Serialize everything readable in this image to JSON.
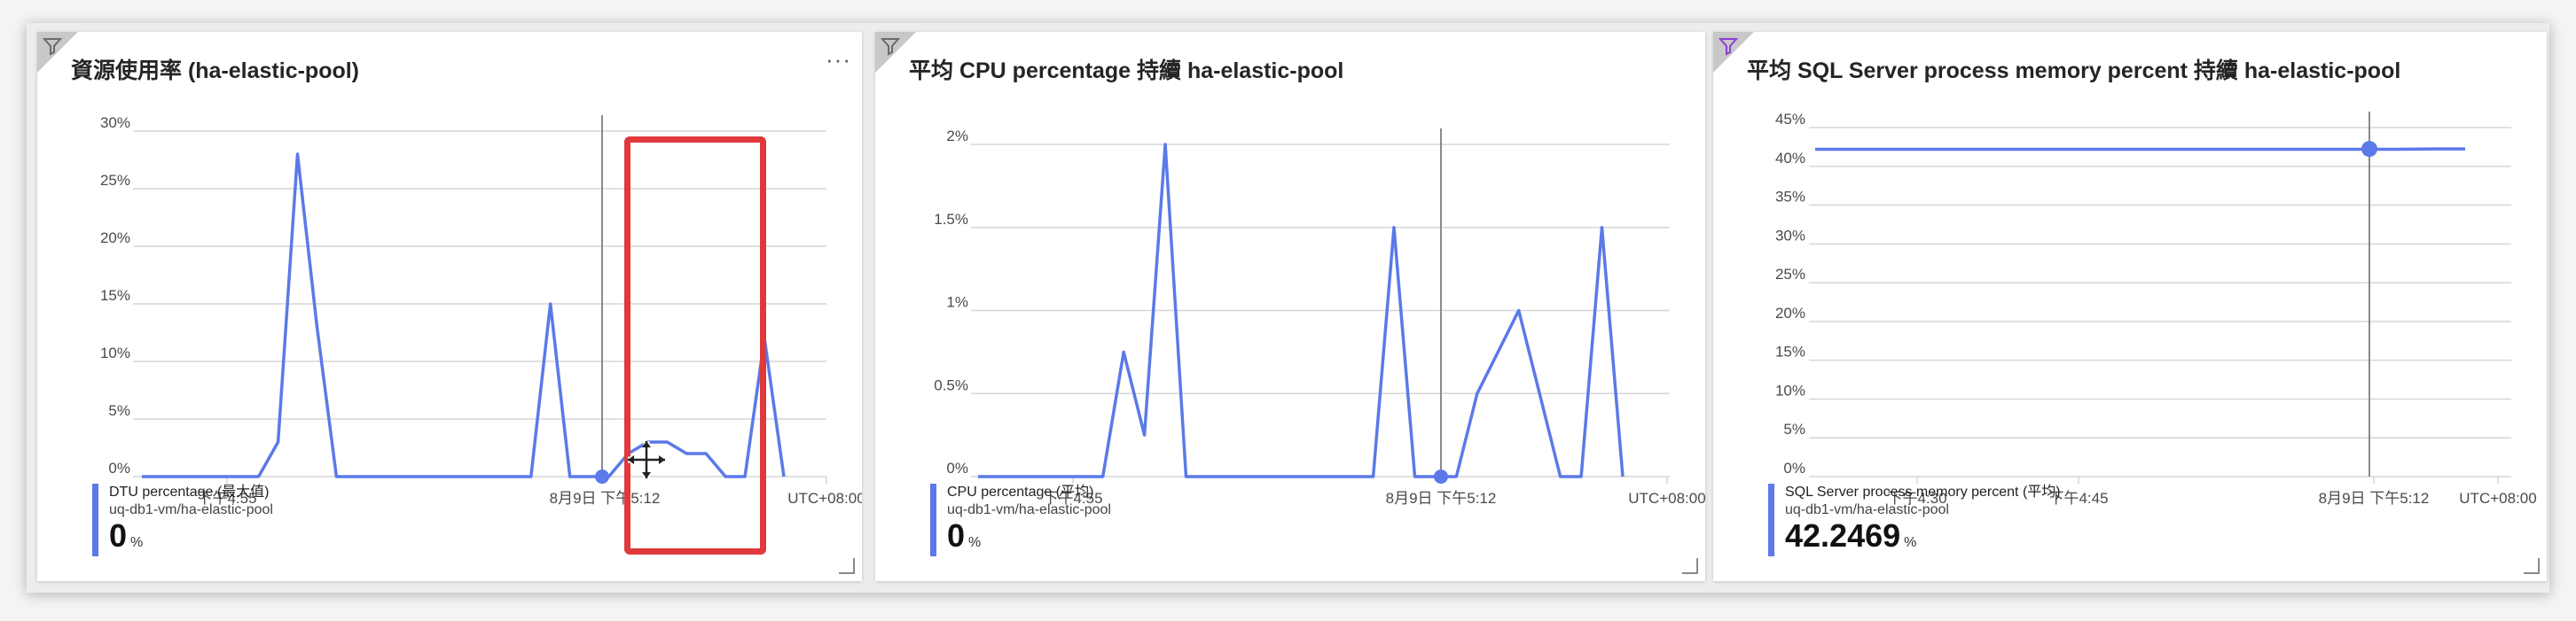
{
  "tiles": [
    {
      "title": "資源使用率 (ha-elastic-pool)",
      "more_label": "···",
      "ytick_labels": [
        "30%",
        "25%",
        "20%",
        "15%",
        "10%",
        "5%",
        "0%"
      ],
      "xtick_labels": [
        "下午4:55",
        "8月9日 下午5:12",
        "UTC+08:00"
      ],
      "legend": {
        "name": "DTU percentage (最大值)",
        "resource": "uq-db1-vm/ha-elastic-pool",
        "value": "0",
        "unit": "%"
      },
      "filter_icon": "filter-icon",
      "filter_color": "#6b6b6b"
    },
    {
      "title": "平均 CPU percentage 持續 ha-elastic-pool",
      "ytick_labels": [
        "2%",
        "1.5%",
        "1%",
        "0.5%",
        "0%"
      ],
      "xtick_labels": [
        "下午4:55",
        "8月9日 下午5:12",
        "UTC+08:00"
      ],
      "legend": {
        "name": "CPU percentage (平均)",
        "resource": "uq-db1-vm/ha-elastic-pool",
        "value": "0",
        "unit": "%"
      },
      "filter_icon": "filter-icon",
      "filter_color": "#6b6b6b"
    },
    {
      "title": "平均 SQL Server process memory percent 持續 ha-elastic-pool",
      "ytick_labels": [
        "45%",
        "40%",
        "35%",
        "30%",
        "25%",
        "20%",
        "15%",
        "10%",
        "5%",
        "0%"
      ],
      "xtick_labels": [
        "下午4:30",
        "下午4:45",
        "8月9日 下午5:12",
        "UTC+08:00"
      ],
      "legend": {
        "name": "SQL Server process memory percent (平均)",
        "resource": "uq-db1-vm/ha-elastic-pool",
        "value": "42.2469",
        "unit": "%"
      },
      "filter_icon": "filter-icon",
      "filter_color": "#8a3fd1"
    }
  ],
  "colors": {
    "series": "#5b79e8",
    "highlight": "#e0393c",
    "grid": "#d6d6d6"
  },
  "chart_data": [
    {
      "type": "line",
      "ylim": [
        0,
        30
      ],
      "series": [
        {
          "name": "DTU percentage (最大值)",
          "values": [
            0,
            0,
            0,
            0,
            0,
            0,
            0,
            3,
            28,
            13,
            0,
            0,
            0,
            0,
            0,
            0,
            0,
            0,
            0,
            0,
            0,
            15,
            0,
            0,
            0,
            2,
            3,
            3,
            2,
            2,
            0,
            0,
            12,
            0
          ]
        }
      ],
      "cursor_index": 22
    },
    {
      "type": "line",
      "ylim": [
        0,
        2
      ],
      "series": [
        {
          "name": "CPU percentage (平均)",
          "values": [
            0,
            0,
            0,
            0,
            0,
            0,
            0,
            0.75,
            0.25,
            2,
            0,
            0,
            0,
            0,
            0,
            0,
            0,
            0,
            0,
            0,
            1.5,
            0,
            0,
            0,
            0.5,
            0.75,
            1,
            0.5,
            0,
            0,
            1.5,
            0
          ]
        }
      ],
      "cursor_index": 22
    },
    {
      "type": "line",
      "ylim": [
        0,
        45
      ],
      "series": [
        {
          "name": "SQL Server process memory percent (平均)",
          "values": [
            42.2,
            42.2,
            42.2,
            42.2,
            42.2,
            42.2,
            42.2,
            42.2,
            42.2,
            42.2,
            42.2,
            42.2,
            42.2,
            42.2,
            42.2,
            42.2,
            42.2,
            42.2,
            42.25,
            42.2469
          ]
        }
      ],
      "cursor_index": 18
    }
  ]
}
